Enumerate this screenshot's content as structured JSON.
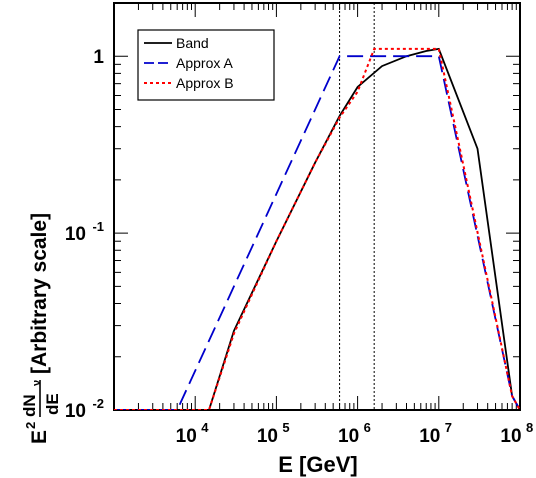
{
  "chart_data": {
    "type": "line",
    "title": "",
    "xlabel": "E [GeV]",
    "ylabel_parts": {
      "prefix": "E",
      "prefix_exp": "2",
      "fraction_num": "dN",
      "fraction_num_sub": "ν",
      "fraction_den": "dE",
      "suffix": "[Arbitrary scale]"
    },
    "xscale": "log",
    "yscale": "log",
    "xlim": [
      1000,
      100000000
    ],
    "ylim": [
      0.01,
      2.0
    ],
    "xticks": [
      {
        "base": "10",
        "exp": "4",
        "value": 10000
      },
      {
        "base": "10",
        "exp": "5",
        "value": 100000
      },
      {
        "base": "10",
        "exp": "6",
        "value": 1000000
      },
      {
        "base": "10",
        "exp": "7",
        "value": 10000000
      },
      {
        "base": "10",
        "exp": "8",
        "value": 100000000
      }
    ],
    "yticks": [
      {
        "base": "1",
        "exp": "",
        "value": 1
      },
      {
        "base": "10",
        "exp": "-1",
        "value": 0.1
      },
      {
        "base": "10",
        "exp": "-2",
        "value": 0.01
      }
    ],
    "vlines": [
      600000,
      1600000
    ],
    "legend_position": "top-left",
    "series": [
      {
        "name": "Band",
        "color": "#000000",
        "style": "solid",
        "x": [
          1000,
          14800,
          30000,
          100000,
          300000,
          600000,
          1000000,
          2000000,
          4000000,
          7000000,
          10000000,
          30000000,
          80000000,
          100000000
        ],
        "y": [
          0.01,
          0.01,
          0.028,
          0.09,
          0.25,
          0.46,
          0.67,
          0.88,
          1.0,
          1.07,
          1.1,
          0.3,
          0.012,
          0.01
        ]
      },
      {
        "name": "Approx A",
        "color": "#0000cc",
        "style": "dashed",
        "x": [
          1000,
          6000,
          600000,
          10000000,
          80000000,
          100000000
        ],
        "y": [
          0.01,
          0.01,
          1.0,
          1.0,
          0.012,
          0.01
        ]
      },
      {
        "name": "Approx B",
        "color": "#ff0000",
        "style": "dotted",
        "x": [
          1000,
          14800,
          30000,
          100000,
          300000,
          600000,
          1000000,
          1600000,
          10000000,
          80000000,
          100000000
        ],
        "y": [
          0.01,
          0.01,
          0.027,
          0.09,
          0.25,
          0.45,
          0.63,
          1.1,
          1.1,
          0.012,
          0.01
        ]
      }
    ]
  }
}
